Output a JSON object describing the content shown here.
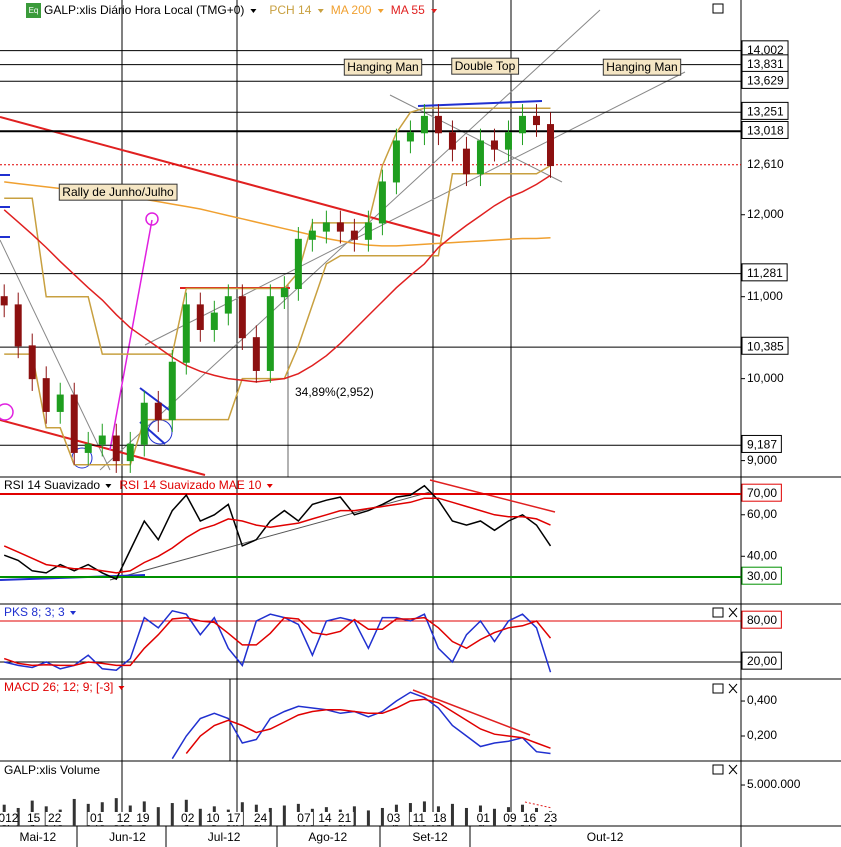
{
  "chart_data": [
    {
      "type": "candlestick",
      "title": "GALP:xlis Diário Hora Local (TMG+0)",
      "icon": "Eq",
      "open": [
        11.0,
        10.9,
        10.4,
        10.0,
        9.6,
        9.8,
        9.1,
        9.2,
        9.3,
        9.0,
        9.2,
        9.7,
        9.5,
        10.2,
        10.9,
        10.6,
        10.8,
        11.0,
        10.5,
        10.1,
        11.0,
        11.1,
        11.7,
        11.8,
        11.9,
        11.8,
        11.7,
        11.9,
        12.4,
        12.9,
        13.0,
        13.2,
        13.0,
        12.8,
        12.5,
        12.9,
        12.8,
        13.0,
        13.2,
        13.1
      ],
      "high": [
        11.15,
        11.05,
        10.55,
        10.15,
        9.95,
        9.95,
        9.35,
        9.45,
        9.45,
        9.35,
        9.85,
        9.85,
        10.35,
        11.05,
        11.05,
        10.95,
        11.15,
        11.15,
        10.65,
        11.15,
        11.25,
        11.85,
        11.95,
        12.05,
        12.05,
        11.95,
        12.05,
        12.55,
        13.05,
        13.15,
        13.35,
        13.35,
        13.15,
        12.95,
        13.05,
        13.05,
        13.15,
        13.35,
        13.35,
        13.25
      ],
      "low": [
        10.75,
        10.25,
        9.85,
        9.45,
        9.45,
        8.95,
        8.95,
        9.05,
        8.85,
        8.85,
        9.05,
        9.35,
        9.35,
        10.05,
        10.45,
        10.45,
        10.65,
        10.35,
        9.95,
        9.95,
        10.85,
        10.95,
        11.55,
        11.65,
        11.65,
        11.55,
        11.55,
        11.75,
        12.25,
        12.75,
        12.85,
        12.85,
        12.65,
        12.35,
        12.35,
        12.65,
        12.65,
        12.85,
        12.95,
        12.45
      ],
      "close": [
        10.9,
        10.4,
        10.0,
        9.6,
        9.8,
        9.1,
        9.2,
        9.3,
        9.0,
        9.2,
        9.7,
        9.5,
        10.2,
        10.9,
        10.6,
        10.8,
        11.0,
        10.5,
        10.1,
        11.0,
        11.1,
        11.7,
        11.8,
        11.9,
        11.8,
        11.7,
        11.9,
        12.4,
        12.9,
        13.0,
        13.2,
        13.0,
        12.8,
        12.5,
        12.9,
        12.8,
        13.0,
        13.2,
        13.1,
        12.6
      ],
      "up_color": "#1f9e1f",
      "down_color": "#8c1010",
      "series": [
        {
          "name": "PCH 14",
          "color": "#c8a040",
          "upper": [
            12.2,
            12.2,
            12.2,
            11.0,
            11.0,
            11.0,
            11.0,
            10.3,
            10.3,
            10.3,
            10.3,
            10.3,
            10.3,
            11.1,
            11.1,
            11.1,
            11.1,
            11.1,
            11.1,
            11.1,
            11.1,
            11.3,
            11.9,
            11.9,
            11.9,
            11.9,
            11.9,
            12.6,
            13.0,
            13.25,
            13.3,
            13.3,
            13.3,
            13.3,
            13.3,
            13.3,
            13.3,
            13.3,
            13.3,
            13.3
          ],
          "lower": [
            10.3,
            10.3,
            10.3,
            9.4,
            9.4,
            8.95,
            8.95,
            8.95,
            8.95,
            8.95,
            9.5,
            9.5,
            9.5,
            9.5,
            9.5,
            9.5,
            9.5,
            10.0,
            10.0,
            10.0,
            10.0,
            10.4,
            10.9,
            11.4,
            11.5,
            11.5,
            11.5,
            11.5,
            11.5,
            11.5,
            11.5,
            11.5,
            12.5,
            12.5,
            12.5,
            12.5,
            12.5,
            12.5,
            12.5,
            12.6
          ]
        },
        {
          "name": "MA 200",
          "color": "#f0a030",
          "values": [
            12.4,
            12.38,
            12.36,
            12.34,
            12.32,
            12.3,
            12.28,
            12.26,
            12.24,
            12.22,
            12.19,
            12.16,
            12.13,
            12.1,
            12.07,
            12.03,
            11.99,
            11.95,
            11.91,
            11.87,
            11.83,
            11.79,
            11.75,
            11.71,
            11.68,
            11.65,
            11.63,
            11.62,
            11.62,
            11.63,
            11.64,
            11.65,
            11.66,
            11.67,
            11.68,
            11.69,
            11.7,
            11.71,
            11.71,
            11.72
          ]
        },
        {
          "name": "MA 55",
          "color": "#e02020",
          "values": [
            12.06,
            11.91,
            11.76,
            11.6,
            11.43,
            11.27,
            11.11,
            10.96,
            10.78,
            10.62,
            10.5,
            10.38,
            10.26,
            10.16,
            10.09,
            10.04,
            10.0,
            9.98,
            9.96,
            9.98,
            10.0,
            10.06,
            10.16,
            10.28,
            10.43,
            10.6,
            10.77,
            10.94,
            11.11,
            11.26,
            11.4,
            11.6,
            11.74,
            11.87,
            11.99,
            12.11,
            12.21,
            12.28,
            12.37,
            12.48
          ]
        }
      ],
      "ylim": [
        8.8,
        14.62
      ],
      "yticks": [
        {
          "value": 12,
          "label": "12,000"
        },
        {
          "value": 11,
          "label": "11,000"
        },
        {
          "value": 10,
          "label": "10,000"
        },
        {
          "value": 9,
          "label": "9,000"
        }
      ],
      "levels": [
        {
          "value": 14.002,
          "label": "14,002"
        },
        {
          "value": 13.831,
          "label": "13,831"
        },
        {
          "value": 13.629,
          "label": "13,629"
        },
        {
          "value": 13.251,
          "label": "13,251"
        },
        {
          "value": 13.018,
          "label": "13,018"
        },
        {
          "value": 12.61,
          "label": "12,610"
        },
        {
          "value": 11.281,
          "label": "11,281"
        },
        {
          "value": 10.385,
          "label": "10,385"
        },
        {
          "value": 9.187,
          "label": "9,187"
        }
      ],
      "annotations": [
        "Hanging Man",
        "Double Top",
        "Hanging Man",
        "Rally de Junho/Julho",
        "34,89%(2,952)"
      ]
    },
    {
      "type": "line",
      "series": [
        {
          "name": "RSI 14 Suavizado",
          "color": "#000000",
          "values": [
            40.5,
            38,
            33,
            32,
            36,
            33,
            36,
            32,
            29,
            43,
            57,
            48,
            62,
            69.5,
            57,
            60,
            65,
            45,
            48,
            57,
            62,
            57,
            65,
            67,
            68.5,
            60,
            62,
            65,
            68.5,
            69.5,
            74,
            67,
            57,
            55,
            57,
            52.5,
            57,
            60,
            55,
            45
          ]
        },
        {
          "name": "RSI 14 Suavizado MAE 10",
          "color": "#e00000",
          "values": [
            45,
            42,
            39,
            36,
            35,
            34,
            34,
            33,
            32,
            33,
            37,
            40,
            44,
            49,
            53,
            55,
            58,
            57,
            55,
            54,
            55,
            56,
            58,
            60,
            62,
            62,
            63,
            64,
            65,
            66,
            68,
            68,
            66,
            64,
            62,
            60,
            59,
            59,
            58,
            55
          ]
        }
      ],
      "ylim": [
        17,
        78.2
      ],
      "yticks": [
        {
          "value": 70,
          "label": "70,00"
        },
        {
          "value": 60,
          "label": "60,00"
        },
        {
          "value": 40,
          "label": "40,00"
        },
        {
          "value": 30,
          "label": "30,00"
        }
      ],
      "lines": [
        {
          "value": 70,
          "color": "#e00000"
        },
        {
          "value": 30,
          "color": "#009000"
        }
      ]
    },
    {
      "type": "line",
      "title": "PKS 8; 3; 3",
      "series": [
        {
          "color": "#2030d0",
          "values": [
            20,
            15,
            12,
            20,
            10,
            15,
            30,
            10,
            8,
            25,
            85,
            70,
            95,
            90,
            60,
            85,
            40,
            15,
            80,
            90,
            85,
            75,
            30,
            80,
            85,
            80,
            40,
            85,
            85,
            80,
            90,
            40,
            20,
            60,
            80,
            50,
            80,
            90,
            70,
            5
          ]
        },
        {
          "color": "#e00000",
          "values": [
            25,
            18,
            15,
            16,
            15,
            15,
            20,
            18,
            15,
            15,
            40,
            60,
            83,
            85,
            80,
            78,
            62,
            45,
            45,
            62,
            85,
            83,
            63,
            60,
            65,
            82,
            68,
            68,
            83,
            83,
            85,
            70,
            50,
            40,
            53,
            63,
            70,
            73,
            80,
            55
          ]
        }
      ],
      "ylim": [
        -4.9,
        104.9
      ],
      "yticks": [
        {
          "value": 80,
          "label": "80,00"
        },
        {
          "value": 20,
          "label": "20,00"
        }
      ],
      "lines": [
        {
          "value": 80,
          "color": "#e00000"
        },
        {
          "value": 20,
          "color": "#000000"
        }
      ]
    },
    {
      "type": "line",
      "title": "MACD 26; 12; 9; [-3]",
      "series": [
        {
          "color": "#2030d0",
          "values": [
            null,
            null,
            null,
            null,
            null,
            null,
            null,
            null,
            null,
            null,
            null,
            null,
            0.07,
            0.2,
            0.3,
            0.33,
            0.3,
            0.16,
            0.18,
            0.3,
            0.34,
            0.37,
            0.36,
            0.35,
            0.33,
            0.34,
            0.31,
            0.34,
            0.4,
            0.45,
            0.42,
            0.36,
            0.26,
            0.2,
            0.14,
            0.16,
            0.17,
            0.19,
            0.11,
            0.1
          ]
        },
        {
          "color": "#e00000",
          "values": [
            null,
            null,
            null,
            null,
            null,
            null,
            null,
            null,
            null,
            null,
            null,
            null,
            null,
            0.1,
            0.2,
            0.26,
            0.29,
            0.26,
            0.22,
            0.24,
            0.28,
            0.32,
            0.34,
            0.35,
            0.35,
            0.34,
            0.33,
            0.33,
            0.36,
            0.4,
            0.41,
            0.39,
            0.34,
            0.29,
            0.24,
            0.21,
            0.2,
            0.19,
            0.16,
            0.13
          ]
        }
      ],
      "ylim": [
        0.057,
        0.526
      ],
      "yticks": [
        {
          "value": 0.4,
          "label": "0,400"
        },
        {
          "value": 0.2,
          "label": "0,200"
        }
      ]
    },
    {
      "type": "bar",
      "title": "GALP:xlis Volume",
      "color": "#333333",
      "values": [
        2600000,
        2200000,
        3100000,
        2400000,
        2000000,
        3300000,
        2700000,
        2900000,
        3400000,
        2500000,
        3000000,
        2300000,
        2800000,
        3200000,
        2100000,
        2400000,
        2000000,
        2900000,
        2600000,
        2200000,
        2500000,
        2700000,
        2100000,
        2300000,
        2000000,
        2400000,
        1900000,
        2200000,
        2600000,
        2800000,
        3000000,
        2400000,
        2700000,
        2200000,
        2500000,
        2100000,
        2300000,
        2600000,
        2200000,
        1800000
      ],
      "ylim": [
        0,
        7930000
      ],
      "yticks": [
        {
          "value": 5000000,
          "label": "5.000.000"
        }
      ],
      "xlim": [
        -0.3,
        52.6
      ],
      "xticks": [
        {
          "value": 0.3,
          "label": "012"
        },
        {
          "value": 2.1,
          "label": "15"
        },
        {
          "value": 3.6,
          "label": "22"
        },
        {
          "value": 6.6,
          "label": "01"
        },
        {
          "value": 8.5,
          "label": "12"
        },
        {
          "value": 9.9,
          "label": "19"
        },
        {
          "value": 13.1,
          "label": "02"
        },
        {
          "value": 14.9,
          "label": "10"
        },
        {
          "value": 16.4,
          "label": "17"
        },
        {
          "value": 18.3,
          "label": "24"
        },
        {
          "value": 21.4,
          "label": "07"
        },
        {
          "value": 22.9,
          "label": "14"
        },
        {
          "value": 24.3,
          "label": "21"
        },
        {
          "value": 27.8,
          "label": "03"
        },
        {
          "value": 29.6,
          "label": "11"
        },
        {
          "value": 31.1,
          "label": "18"
        },
        {
          "value": 34.2,
          "label": "01"
        },
        {
          "value": 36.1,
          "label": "09"
        },
        {
          "value": 37.5,
          "label": "16"
        },
        {
          "value": 39,
          "label": "23"
        }
      ],
      "months": [
        {
          "value": 2.4,
          "label": "Mai-12"
        },
        {
          "value": 8.8,
          "label": "Jun-12"
        },
        {
          "value": 15.7,
          "label": "Jul-12"
        },
        {
          "value": 23.1,
          "label": "Ago-12"
        },
        {
          "value": 30.4,
          "label": "Set-12"
        },
        {
          "value": 42.9,
          "label": "Out-12"
        }
      ]
    }
  ]
}
